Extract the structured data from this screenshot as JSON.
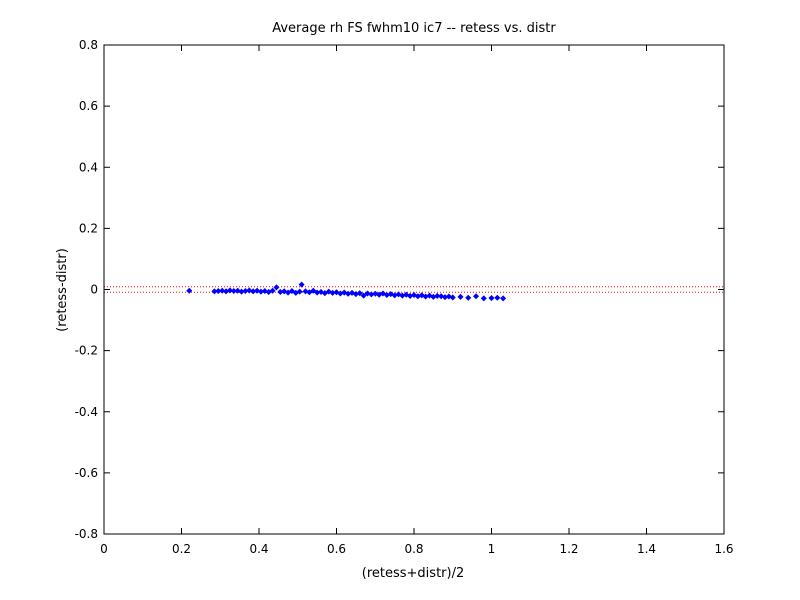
{
  "chart_data": {
    "type": "scatter",
    "title": "Average rh FS fwhm10 ic7 -- retess vs. distr",
    "xlabel": "(retess+distr)/2",
    "ylabel": "(retess-distr)",
    "xlim": [
      0,
      1.6
    ],
    "ylim": [
      -0.8,
      0.8
    ],
    "xticks": [
      "0",
      "0.2",
      "0.4",
      "0.6",
      "0.8",
      "1",
      "1.2",
      "1.4",
      "1.6"
    ],
    "yticks": [
      "-0.8",
      "-0.6",
      "-0.4",
      "-0.2",
      "0",
      "0.2",
      "0.4",
      "0.6",
      "0.8"
    ],
    "grid": false,
    "marker_color": "#0000ff",
    "reference_lines": {
      "color": "#ff0000",
      "style": "dotted",
      "y": [
        0.009,
        -0.009
      ]
    },
    "points": [
      [
        0.22,
        -0.004
      ],
      [
        0.285,
        -0.006
      ],
      [
        0.295,
        -0.005
      ],
      [
        0.305,
        -0.004
      ],
      [
        0.315,
        -0.006
      ],
      [
        0.325,
        -0.003
      ],
      [
        0.335,
        -0.005
      ],
      [
        0.345,
        -0.004
      ],
      [
        0.355,
        -0.007
      ],
      [
        0.365,
        -0.005
      ],
      [
        0.375,
        -0.003
      ],
      [
        0.385,
        -0.006
      ],
      [
        0.395,
        -0.004
      ],
      [
        0.405,
        -0.007
      ],
      [
        0.415,
        -0.005
      ],
      [
        0.425,
        -0.008
      ],
      [
        0.435,
        -0.004
      ],
      [
        0.445,
        0.007
      ],
      [
        0.455,
        -0.008
      ],
      [
        0.465,
        -0.006
      ],
      [
        0.475,
        -0.01
      ],
      [
        0.485,
        -0.005
      ],
      [
        0.495,
        -0.011
      ],
      [
        0.505,
        -0.007
      ],
      [
        0.51,
        0.016
      ],
      [
        0.52,
        -0.006
      ],
      [
        0.53,
        -0.009
      ],
      [
        0.54,
        -0.004
      ],
      [
        0.55,
        -0.01
      ],
      [
        0.56,
        -0.008
      ],
      [
        0.57,
        -0.012
      ],
      [
        0.58,
        -0.007
      ],
      [
        0.59,
        -0.011
      ],
      [
        0.6,
        -0.009
      ],
      [
        0.61,
        -0.013
      ],
      [
        0.62,
        -0.01
      ],
      [
        0.63,
        -0.014
      ],
      [
        0.64,
        -0.011
      ],
      [
        0.65,
        -0.015
      ],
      [
        0.66,
        -0.012
      ],
      [
        0.67,
        -0.02
      ],
      [
        0.68,
        -0.013
      ],
      [
        0.69,
        -0.016
      ],
      [
        0.7,
        -0.014
      ],
      [
        0.71,
        -0.017
      ],
      [
        0.72,
        -0.013
      ],
      [
        0.73,
        -0.018
      ],
      [
        0.74,
        -0.015
      ],
      [
        0.75,
        -0.019
      ],
      [
        0.76,
        -0.016
      ],
      [
        0.77,
        -0.02
      ],
      [
        0.78,
        -0.017
      ],
      [
        0.79,
        -0.021
      ],
      [
        0.8,
        -0.018
      ],
      [
        0.81,
        -0.022
      ],
      [
        0.82,
        -0.019
      ],
      [
        0.83,
        -0.023
      ],
      [
        0.84,
        -0.02
      ],
      [
        0.85,
        -0.024
      ],
      [
        0.86,
        -0.021
      ],
      [
        0.87,
        -0.022
      ],
      [
        0.88,
        -0.025
      ],
      [
        0.89,
        -0.023
      ],
      [
        0.9,
        -0.026
      ],
      [
        0.92,
        -0.024
      ],
      [
        0.94,
        -0.027
      ],
      [
        0.96,
        -0.022
      ],
      [
        0.98,
        -0.029
      ],
      [
        1.0,
        -0.028
      ],
      [
        1.015,
        -0.027
      ],
      [
        1.03,
        -0.029
      ]
    ]
  }
}
